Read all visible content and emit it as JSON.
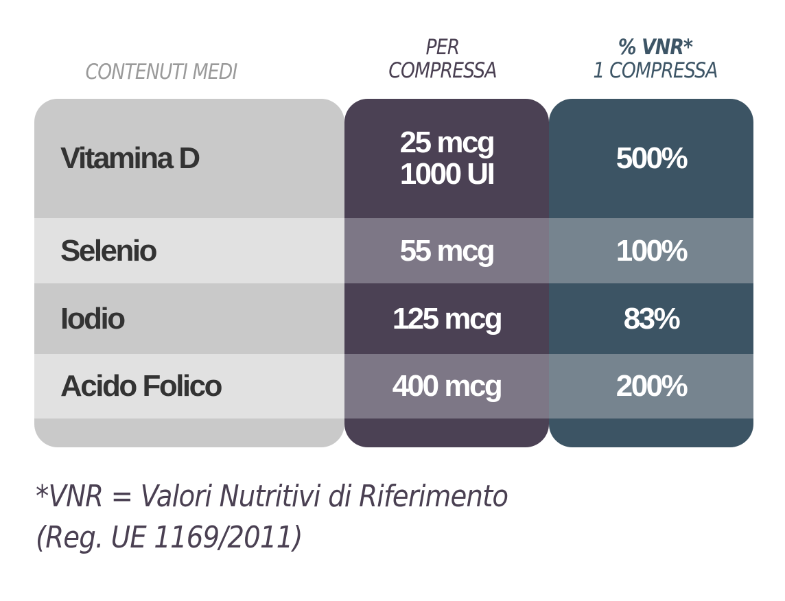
{
  "headers": {
    "name": "CONTENUTI MEDI",
    "per_line1": "PER",
    "per_line2": "COMPRESSA",
    "vnr_line1": "% VNR*",
    "vnr_line2": "1 COMPRESSA"
  },
  "rows": [
    {
      "name": "Vitamina D",
      "per_line1": "25 mcg",
      "per_line2": "1000 UI",
      "vnr": "500%"
    },
    {
      "name": "Selenio",
      "per_line1": "55 mcg",
      "per_line2": "",
      "vnr": "100%"
    },
    {
      "name": "Iodio",
      "per_line1": "125 mcg",
      "per_line2": "",
      "vnr": "83%"
    },
    {
      "name": "Acido Folico",
      "per_line1": "400 mcg",
      "per_line2": "",
      "vnr": "200%"
    }
  ],
  "footnote": {
    "line1": "*VNR = Valori Nutritivi di Riferimento",
    "line2": "(Reg. UE 1169/2011)"
  },
  "colors": {
    "name_column": "#c9c9c9",
    "per_column": "#4b4154",
    "vnr_column": "#3c5464"
  }
}
